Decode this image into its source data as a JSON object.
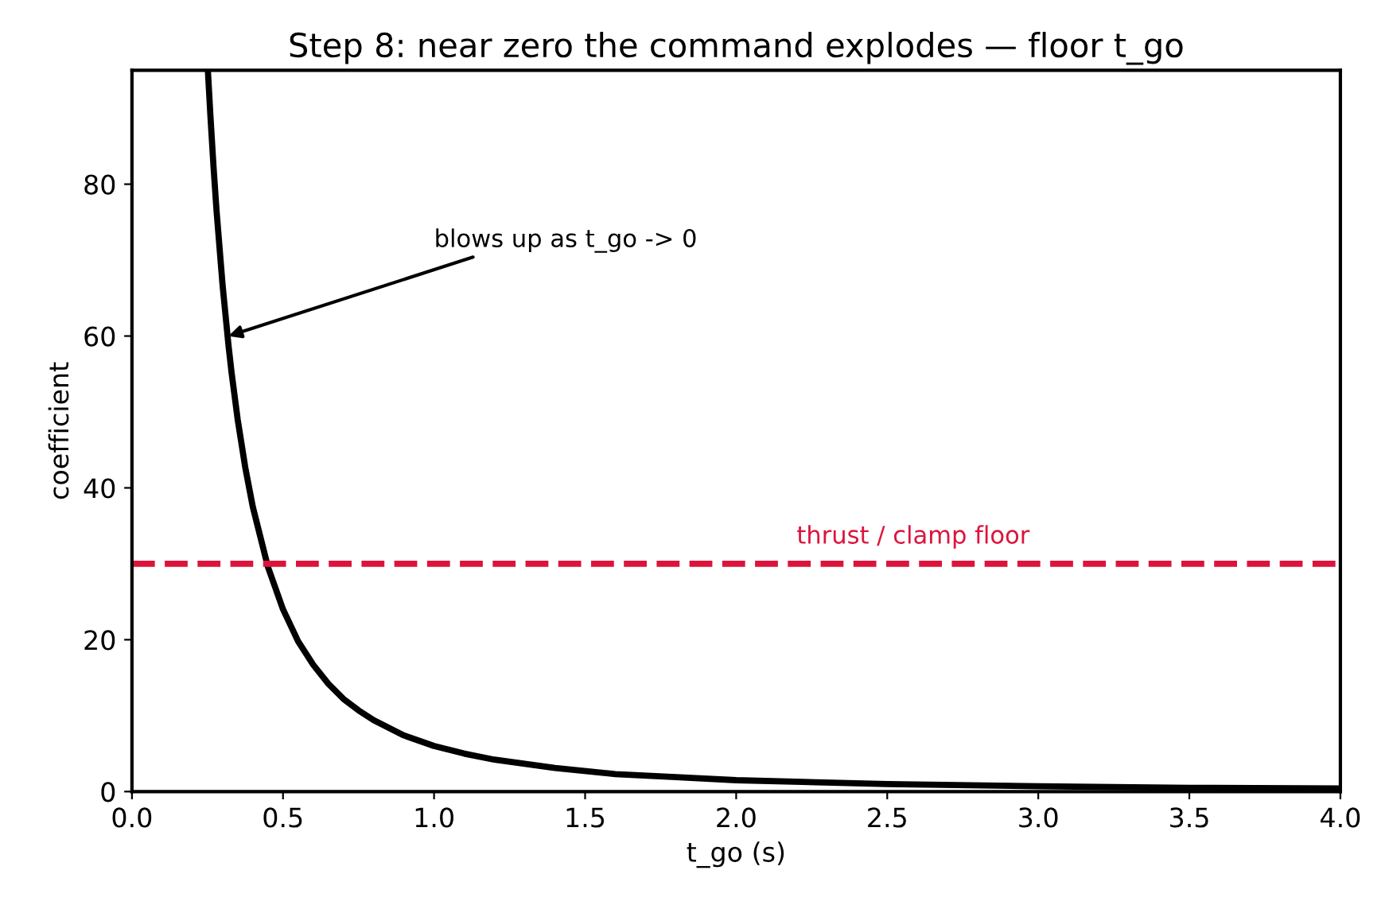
{
  "chart_data": {
    "type": "line",
    "title": "Step 8: near zero the command explodes — floor t_go",
    "xlabel": "t_go (s)",
    "ylabel": "coefficient",
    "x": [
      0.252,
      0.26,
      0.27,
      0.28,
      0.3,
      0.32,
      0.33,
      0.35,
      0.375,
      0.4,
      0.45,
      0.5,
      0.55,
      0.6,
      0.65,
      0.7,
      0.75,
      0.8,
      0.9,
      1.0,
      1.1,
      1.2,
      1.4,
      1.6,
      1.8,
      2.0,
      2.5,
      3.0,
      3.5,
      4.0
    ],
    "series": [
      {
        "color": "#000000",
        "values": [
          94.5,
          88.8,
          82.3,
          76.5,
          66.7,
          58.6,
          55.1,
          49.0,
          42.7,
          37.5,
          29.6,
          24.0,
          19.8,
          16.7,
          14.2,
          12.2,
          10.7,
          9.4,
          7.4,
          6.0,
          5.0,
          4.2,
          3.1,
          2.3,
          1.9,
          1.5,
          1.0,
          0.7,
          0.5,
          0.4
        ]
      }
    ],
    "xlim": [
      0.0,
      4.0
    ],
    "xticks": [
      {
        "value": 0,
        "label": "0.0"
      },
      0.5,
      {
        "value": 1,
        "label": "1.0"
      },
      1.5,
      {
        "value": 2,
        "label": "2.0"
      },
      2.5,
      {
        "value": 3,
        "label": "3.0"
      },
      3.5,
      {
        "value": 4,
        "label": "4.0"
      }
    ],
    "ylim": [
      0,
      95
    ],
    "yticks": [
      0,
      20,
      40,
      60,
      80
    ],
    "ref_lines": [
      {
        "axis": "y",
        "value": 30,
        "label": "thrust / clamp floor",
        "color": "#dc143c",
        "line_style": "dashed"
      }
    ],
    "annotations": [
      {
        "text": "blows up as t_go -> 0",
        "x": 0.32,
        "y": 60
      }
    ],
    "grid": false,
    "legend": false,
    "marker": "none",
    "line_style": "solid"
  }
}
